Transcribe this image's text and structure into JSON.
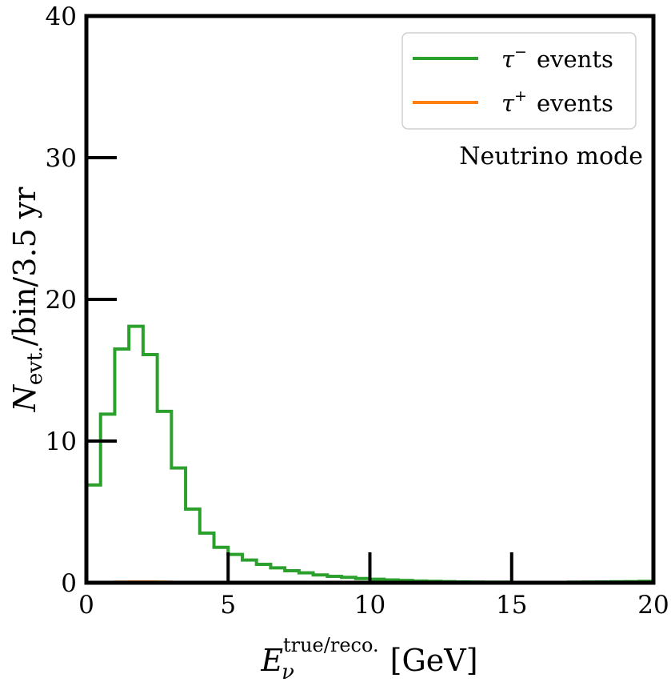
{
  "chart_data": {
    "type": "line",
    "xlabel": {
      "main": "E",
      "sub": "ν",
      "sup": "true/reco.",
      "unit": "[GeV]"
    },
    "ylabel": {
      "main": "N",
      "sub": "evt.",
      "rest": "/bin/3.5 yr"
    },
    "xlim": [
      0,
      20
    ],
    "ylim": [
      0,
      40
    ],
    "xticks": [
      "0",
      "5",
      "10",
      "15",
      "20"
    ],
    "yticks": [
      "0",
      "10",
      "20",
      "30",
      "40"
    ],
    "annotation": "Neutrino mode",
    "legend": {
      "placement": "top-right",
      "entries": [
        {
          "symbol": "τ",
          "sup": "−",
          "text": "events",
          "color": "#2ca02c"
        },
        {
          "symbol": "τ",
          "sup": "+",
          "text": "events",
          "color": "#ff7f0e"
        }
      ]
    },
    "bin_edges": [
      0,
      0.5,
      1.0,
      1.5,
      2.0,
      2.5,
      3.0,
      3.5,
      4.0,
      4.5,
      5.0,
      5.5,
      6.0,
      6.5,
      7.0,
      7.5,
      8.0,
      8.5,
      9.0,
      9.5,
      10.0,
      10.5,
      11.0,
      11.5,
      12.0,
      12.5,
      13.0,
      13.5,
      14.0,
      14.5,
      15.0,
      15.5,
      16.0,
      16.5,
      17.0,
      17.5,
      18.0,
      18.5,
      19.0,
      19.5,
      20.0
    ],
    "series": [
      {
        "name": "τ− events",
        "color": "#2ca02c",
        "values": [
          6.9,
          11.9,
          16.5,
          18.1,
          16.1,
          12.1,
          8.1,
          5.2,
          3.5,
          2.5,
          2.0,
          1.6,
          1.3,
          1.05,
          0.85,
          0.7,
          0.55,
          0.45,
          0.38,
          0.3,
          0.25,
          0.2,
          0.16,
          0.12,
          0.1,
          0.08,
          0.06,
          0.05,
          0.04,
          0.04,
          0.03,
          0.03,
          0.03,
          0.03,
          0.04,
          0.05,
          0.06,
          0.07,
          0.08,
          0.1
        ]
      },
      {
        "name": "τ+ events",
        "color": "#ff7f0e",
        "values": [
          0.05,
          0.06,
          0.07,
          0.08,
          0.08,
          0.07,
          0.06,
          0.05,
          0.04,
          0.03,
          0.03,
          0.02,
          0.02,
          0.02,
          0.01,
          0.01,
          0.01,
          0.01,
          0.01,
          0.01,
          0.01,
          0.01,
          0.01,
          0.0,
          0.0,
          0.0,
          0.0,
          0.0,
          0.0,
          0.0,
          0.0,
          0.0,
          0.0,
          0.0,
          0.0,
          0.0,
          0.0,
          0.0,
          0.0,
          0.0
        ]
      }
    ]
  }
}
